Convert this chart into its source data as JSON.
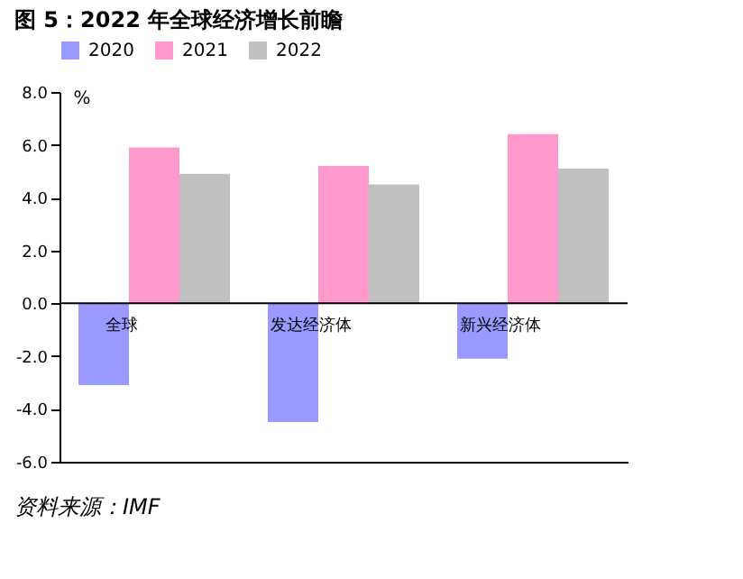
{
  "chart_data": {
    "type": "bar",
    "title": "图 5：2022 年全球经济增长前瞻",
    "ylabel": "%",
    "categories": [
      "全球",
      "发达经济体",
      "新兴经济体"
    ],
    "series": [
      {
        "name": "2020",
        "color": "#9999ff",
        "values": [
          -3.1,
          -4.5,
          -2.1
        ]
      },
      {
        "name": "2021",
        "color": "#ff99cc",
        "values": [
          5.9,
          5.2,
          6.4
        ]
      },
      {
        "name": "2022",
        "color": "#c0c0c0",
        "values": [
          4.9,
          4.5,
          5.1
        ]
      }
    ],
    "ylim": [
      -6,
      8
    ],
    "yticks": [
      {
        "value": -6,
        "label": "-6.0"
      },
      {
        "value": -4,
        "label": "-4.0"
      },
      {
        "value": -2,
        "label": "-2.0"
      },
      {
        "value": 0,
        "label": "0.0"
      },
      {
        "value": 2,
        "label": "2.0"
      },
      {
        "value": 4,
        "label": "4.0"
      },
      {
        "value": 6,
        "label": "6.0"
      },
      {
        "value": 8,
        "label": "8.0"
      }
    ],
    "grid": false,
    "legend": "top",
    "annotations": [
      "资料来源：IMF"
    ]
  }
}
